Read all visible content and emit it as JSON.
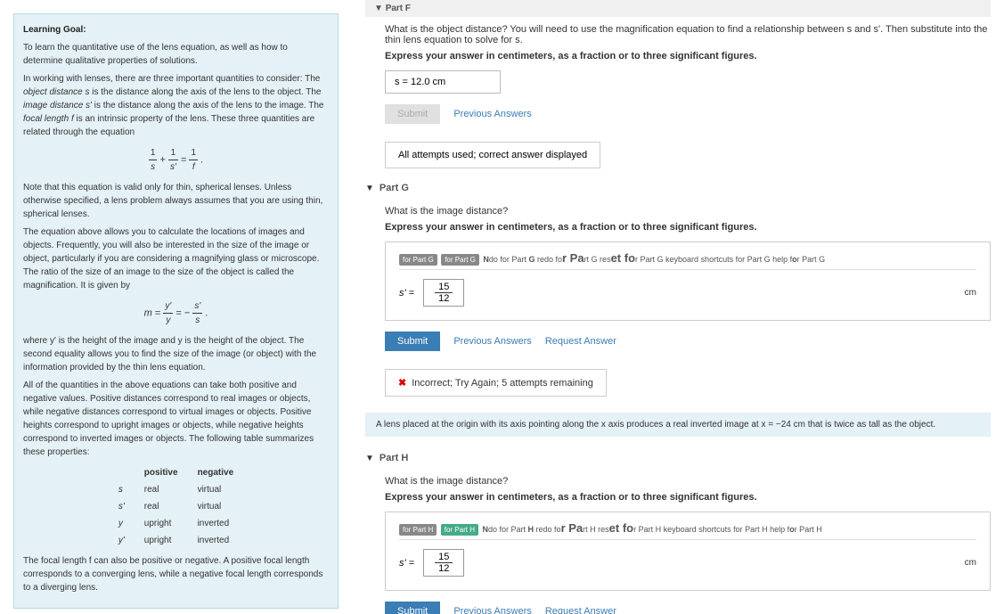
{
  "learning": {
    "title": "Learning Goal:",
    "intro": "To learn the quantitative use of the lens equation, as well as how to determine qualitative properties of solutions.",
    "p1a": "In working with lenses, there are three important quantities to consider: The ",
    "p1b": " is the distance along the axis of the lens to the object. The ",
    "p1c": " is the distance along the axis of the lens to the image. The ",
    "p1d": " is an intrinsic property of the lens. These three quantities are related through the equation",
    "obj_dist": "object distance",
    "img_dist": "image distance",
    "focal": "focal length",
    "s": "s",
    "sprime": "s'",
    "f": "f",
    "p2": "Note that this equation is valid only for thin, spherical lenses. Unless otherwise specified, a lens problem always assumes that you are using thin, spherical lenses.",
    "p3": "The equation above allows you to calculate the locations of images and objects. Frequently, you will also be interested in the size of the image or object, particularly if you are considering a magnifying glass or microscope. The ratio of the size of an image to the size of the object is called the magnification. It is given by",
    "p4": "where y' is the height of the image and y is the height of the object. The second equality allows you to find the size of the image (or object) with the information provided by the thin lens equation.",
    "p5": "All of the quantities in the above equations can take both positive and negative values. Positive distances correspond to real images or objects, while negative distances correspond to virtual images or objects. Positive heights correspond to upright images or objects, while negative heights correspond to inverted images or objects. The following table summarizes these properties:",
    "tbl": {
      "h1": "positive",
      "h2": "negative",
      "r1a": "s",
      "r1b": "real",
      "r1c": "virtual",
      "r2a": "s'",
      "r2b": "real",
      "r2c": "virtual",
      "r3a": "y",
      "r3b": "upright",
      "r3c": "inverted",
      "r4a": "y'",
      "r4b": "upright",
      "r4c": "inverted"
    },
    "p6": "The focal length f can also be positive or negative. A positive focal length corresponds to a converging lens, while a negative focal length corresponds to a diverging lens."
  },
  "partF": {
    "header": "Part F",
    "question": "What is the object distance? You will need to use the magnification equation to find a relationship between s and s'. Then substitute into the thin lens equation to solve for s.",
    "instruct": "Express your answer in centimeters, as a fraction or to three significant figures.",
    "answer": "s = 12.0 cm",
    "submit": "Submit",
    "prev": "Previous Answers",
    "feedback": "All attempts used; correct answer displayed"
  },
  "partG": {
    "header": "Part G",
    "question": "What is the image distance?",
    "instruct": "Express your answer in centimeters, as a fraction or to three significant figures.",
    "toolbar": "for Part G for Part G Ndo for Part G redo for Part G reset for Part G keyboard shortcuts for Part G help for Part G",
    "var": "s' =",
    "num": "15",
    "den": "12",
    "unit": "cm",
    "submit": "Submit",
    "prev": "Previous Answers",
    "req": "Request Answer",
    "feedback": "Incorrect; Try Again; 5 attempts remaining"
  },
  "info": {
    "text": "A lens placed at the origin with its axis pointing along the x axis produces a real inverted image at x = −24 cm that is twice as tall as the object."
  },
  "partH": {
    "header": "Part H",
    "question": "What is the image distance?",
    "instruct": "Express your answer in centimeters, as a fraction or to three significant figures.",
    "toolbar": "for Part H for Part H Ndo for Part H redo for Part H reset for Part H keyboard shortcuts for Part H help for Part H",
    "var": "s' =",
    "num": "15",
    "den": "12",
    "unit": "cm",
    "submit": "Submit",
    "prev": "Previous Answers",
    "req": "Request Answer"
  }
}
